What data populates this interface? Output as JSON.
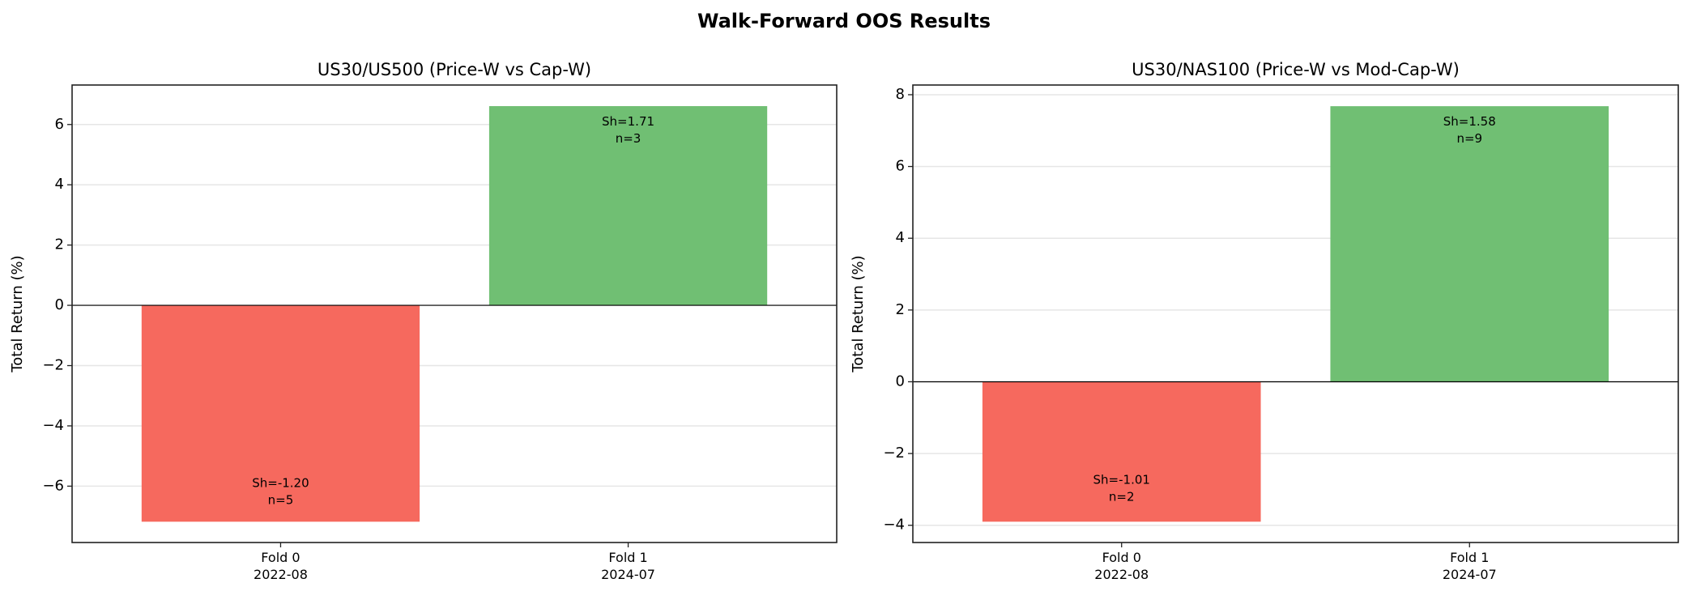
{
  "suptitle": "Walk-Forward OOS Results",
  "colors": {
    "positive": "#70bf73",
    "negative": "#f6695e",
    "grid": "#e6e6e6"
  },
  "chart_data": [
    {
      "type": "bar",
      "title": "US30/US500 (Price-W vs Cap-W)",
      "ylabel": "Total Return (%)",
      "xlabel": "",
      "categories": [
        "Fold 0\n2022-08",
        "Fold 1\n2024-07"
      ],
      "values": [
        -7.18,
        6.61
      ],
      "annotations": [
        "Sh=-1.20\nn=5",
        "Sh=1.71\nn=3"
      ],
      "ylim": [
        -7.87,
        7.31
      ],
      "yticks": [
        -6,
        -4,
        -2,
        0,
        2,
        4,
        6
      ],
      "grid": "y"
    },
    {
      "type": "bar",
      "title": "US30/NAS100 (Price-W vs Mod-Cap-W)",
      "ylabel": "Total Return (%)",
      "xlabel": "",
      "categories": [
        "Fold 0\n2022-08",
        "Fold 1\n2024-07"
      ],
      "values": [
        -3.9,
        7.68
      ],
      "annotations": [
        "Sh=-1.01\nn=2",
        "Sh=1.58\nn=9"
      ],
      "ylim": [
        -4.48,
        8.27
      ],
      "yticks": [
        -4,
        -2,
        0,
        2,
        4,
        6,
        8
      ],
      "grid": "y"
    }
  ]
}
